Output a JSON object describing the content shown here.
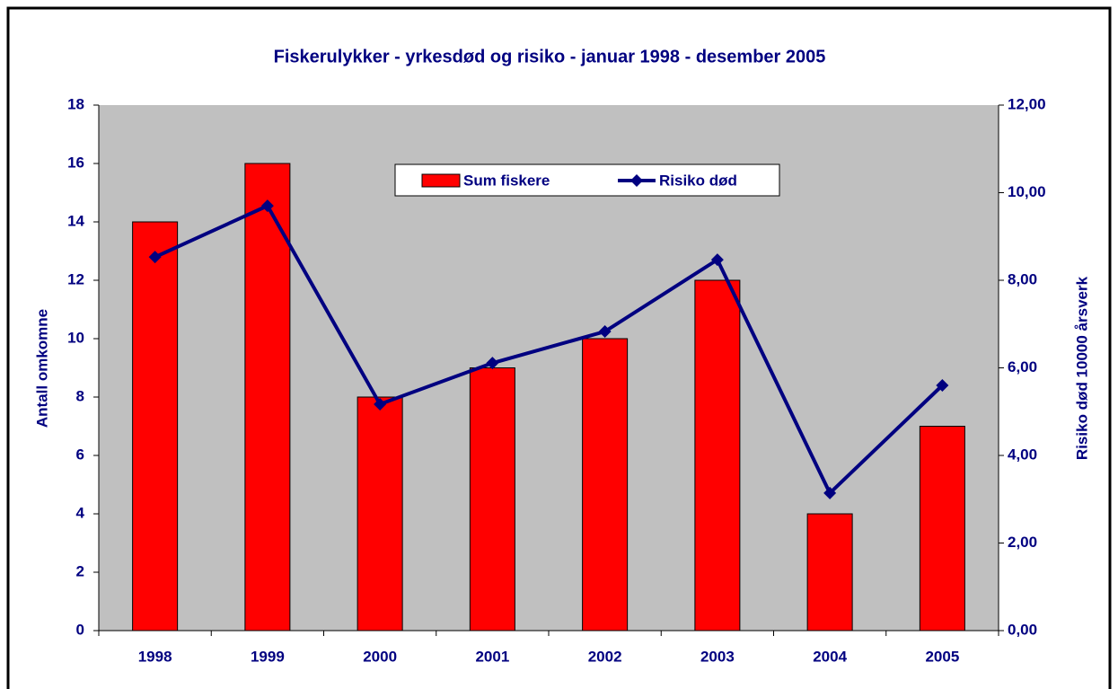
{
  "chart_data": {
    "type": "bar",
    "title": "Fiskerulykker - yrkesdød og risiko - januar 1998 - desember 2005",
    "categories": [
      "1998",
      "1999",
      "2000",
      "2001",
      "2002",
      "2003",
      "2004",
      "2005"
    ],
    "series": [
      {
        "name": "Sum fiskere",
        "type": "bar",
        "color": "#ff0000",
        "values": [
          14,
          16,
          8,
          9,
          10,
          12,
          4,
          7
        ]
      },
      {
        "name": "Risiko død",
        "type": "line",
        "axis": "y2",
        "color": "#000080",
        "values": [
          8.53,
          9.7,
          5.17,
          6.11,
          6.83,
          8.47,
          3.14,
          5.6
        ]
      }
    ],
    "ylabel": "Antall omkomne",
    "y2label": "Risiko død 10000 årsverk",
    "ylim": [
      0,
      18
    ],
    "yticks": [
      0,
      2,
      4,
      6,
      8,
      10,
      12,
      14,
      16,
      18
    ],
    "y2lim": [
      0,
      12
    ],
    "y2ticks": [
      {
        "value": 0,
        "label": "0,00"
      },
      {
        "value": 2,
        "label": "2,00"
      },
      {
        "value": 4,
        "label": "4,00"
      },
      {
        "value": 6,
        "label": "6,00"
      },
      {
        "value": 8,
        "label": "8,00"
      },
      {
        "value": 10,
        "label": "10,00"
      },
      {
        "value": 12,
        "label": "12,00"
      }
    ],
    "grid": false,
    "legend": "top"
  }
}
